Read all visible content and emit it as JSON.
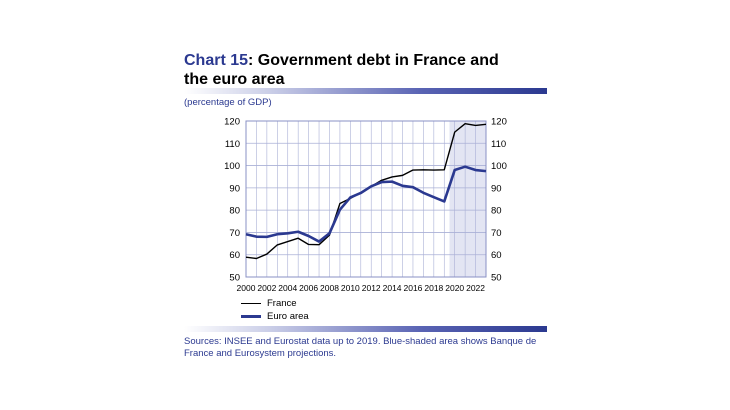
{
  "header": {
    "title_lead": "Chart 15",
    "title_rest": ": Government debt in France and the euro area",
    "unit": "(percentage of GDP)"
  },
  "footer": {
    "source": "Sources: INSEE and Eurostat data up to 2019. Blue-shaded area shows Banque de France and Eurosystem projections."
  },
  "colors": {
    "france": "#000000",
    "euro_area": "#2b3990",
    "projection_shade": "#e3e5f3",
    "grid": "#aab0d6"
  },
  "chart_data": {
    "type": "line",
    "x": [
      2000,
      2001,
      2002,
      2003,
      2004,
      2005,
      2006,
      2007,
      2008,
      2009,
      2010,
      2011,
      2012,
      2013,
      2014,
      2015,
      2016,
      2017,
      2018,
      2019,
      2020,
      2021,
      2022,
      2023
    ],
    "series": [
      {
        "name": "France",
        "values": [
          58.9,
          58.3,
          60.3,
          64.4,
          65.9,
          67.4,
          64.6,
          64.5,
          68.8,
          83.0,
          85.3,
          87.8,
          90.6,
          93.4,
          94.9,
          95.6,
          98.0,
          98.1,
          98.0,
          98.1,
          115.0,
          118.8,
          118.0,
          118.5
        ]
      },
      {
        "name": "Euro area",
        "values": [
          69.2,
          68.1,
          68.0,
          69.2,
          69.6,
          70.3,
          68.4,
          65.9,
          69.6,
          80.2,
          85.7,
          87.7,
          90.7,
          92.6,
          92.8,
          90.9,
          90.3,
          87.8,
          85.8,
          83.9,
          98.0,
          99.5,
          98.0,
          97.5
        ]
      }
    ],
    "xlim": [
      2000,
      2023
    ],
    "ylim": [
      50,
      120
    ],
    "yticks": [
      50,
      60,
      70,
      80,
      90,
      100,
      110,
      120
    ],
    "xtick_labels": [
      "2000",
      "2002",
      "2004",
      "2006",
      "2008",
      "2010",
      "2012",
      "2014",
      "2016",
      "2018",
      "2020",
      "2022"
    ],
    "projection_from": 2020,
    "grid": true,
    "legend_position": "bottom-left"
  }
}
